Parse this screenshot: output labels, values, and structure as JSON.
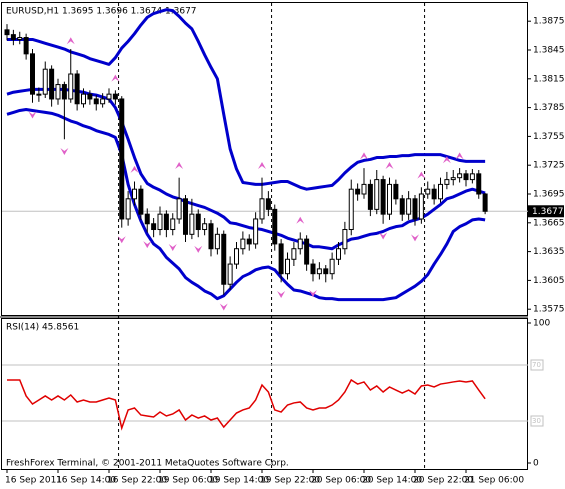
{
  "chart_data": [
    {
      "type": "candlestick",
      "title": "EURUSD,H1  1.3695 1.3696 1.3674 1.3677",
      "categories": [
        "16 Sep 2011",
        null,
        null,
        null,
        null,
        null,
        null,
        null,
        "16 Sep 14:00",
        null,
        null,
        null,
        null,
        null,
        null,
        null,
        "16 Sep 22:00",
        null,
        null,
        null,
        null,
        null,
        null,
        null,
        "19 Sep 06:00",
        null,
        null,
        null,
        null,
        null,
        null,
        null,
        "19 Sep 14:00",
        null,
        null,
        null,
        null,
        null,
        null,
        null,
        "19 Sep 22:00",
        null,
        null,
        null,
        null,
        null,
        null,
        null,
        "20 Sep 06:00",
        null,
        null,
        null,
        null,
        null,
        null,
        null,
        "20 Sep 14:00",
        null,
        null,
        null,
        null,
        null,
        null,
        null,
        "20 Sep 22:00",
        null,
        null,
        null,
        null,
        null,
        null,
        null,
        "21 Sep 06:00",
        null,
        null,
        null
      ],
      "ohlc": [
        [
          1.3866,
          1.3872,
          1.3855,
          1.3861
        ],
        [
          1.3861,
          1.3866,
          1.385,
          1.3856
        ],
        [
          1.3856,
          1.3864,
          1.3851,
          1.3858
        ],
        [
          1.3858,
          1.3862,
          1.3835,
          1.3841
        ],
        [
          1.3841,
          1.3846,
          1.379,
          1.3799
        ],
        [
          1.3799,
          1.3806,
          1.3791,
          1.3799
        ],
        [
          1.3799,
          1.3833,
          1.3795,
          1.3825
        ],
        [
          1.3825,
          1.3829,
          1.3786,
          1.3794
        ],
        [
          1.3794,
          1.3815,
          1.3788,
          1.3809
        ],
        [
          1.3809,
          1.3812,
          1.3752,
          1.3794
        ],
        [
          1.3794,
          1.3846,
          1.379,
          1.382
        ],
        [
          1.382,
          1.3824,
          1.3782,
          1.3789
        ],
        [
          1.3789,
          1.3805,
          1.3785,
          1.3799
        ],
        [
          1.3799,
          1.3803,
          1.3788,
          1.3794
        ],
        [
          1.3794,
          1.3798,
          1.3782,
          1.3789
        ],
        [
          1.3789,
          1.38,
          1.3785,
          1.3794
        ],
        [
          1.3794,
          1.3805,
          1.379,
          1.3799
        ],
        [
          1.3799,
          1.3803,
          1.3788,
          1.3794
        ],
        [
          1.3794,
          1.3797,
          1.366,
          1.3669
        ],
        [
          1.3669,
          1.3698,
          1.3662,
          1.369
        ],
        [
          1.369,
          1.3708,
          1.3683,
          1.37
        ],
        [
          1.37,
          1.3704,
          1.3668,
          1.3674
        ],
        [
          1.3674,
          1.368,
          1.3655,
          1.3664
        ],
        [
          1.3664,
          1.367,
          1.365,
          1.3658
        ],
        [
          1.3658,
          1.3682,
          1.3652,
          1.3674
        ],
        [
          1.3674,
          1.3678,
          1.365,
          1.3658
        ],
        [
          1.3658,
          1.3675,
          1.3652,
          1.3669
        ],
        [
          1.3669,
          1.3712,
          1.3664,
          1.369
        ],
        [
          1.369,
          1.3694,
          1.3645,
          1.3653
        ],
        [
          1.3653,
          1.369,
          1.3648,
          1.3674
        ],
        [
          1.3674,
          1.3679,
          1.365,
          1.3658
        ],
        [
          1.3658,
          1.367,
          1.3652,
          1.3664
        ],
        [
          1.3664,
          1.3668,
          1.363,
          1.3638
        ],
        [
          1.3638,
          1.366,
          1.3632,
          1.3653
        ],
        [
          1.3653,
          1.3657,
          1.359,
          1.3601
        ],
        [
          1.3601,
          1.363,
          1.3595,
          1.3622
        ],
        [
          1.3622,
          1.3645,
          1.3617,
          1.3638
        ],
        [
          1.3638,
          1.3656,
          1.3632,
          1.3648
        ],
        [
          1.3648,
          1.3653,
          1.3636,
          1.3643
        ],
        [
          1.3643,
          1.3676,
          1.3638,
          1.3669
        ],
        [
          1.3669,
          1.3712,
          1.3664,
          1.369
        ],
        [
          1.369,
          1.3698,
          1.3672,
          1.3679
        ],
        [
          1.3679,
          1.3684,
          1.3636,
          1.3643
        ],
        [
          1.3643,
          1.3648,
          1.3603,
          1.3612
        ],
        [
          1.3612,
          1.3634,
          1.3606,
          1.3627
        ],
        [
          1.3627,
          1.3645,
          1.362,
          1.3638
        ],
        [
          1.3638,
          1.3655,
          1.3632,
          1.3648
        ],
        [
          1.3648,
          1.3652,
          1.3615,
          1.3622
        ],
        [
          1.3622,
          1.3627,
          1.3604,
          1.3612
        ],
        [
          1.3612,
          1.3624,
          1.3606,
          1.3617
        ],
        [
          1.3617,
          1.3621,
          1.3603,
          1.3612
        ],
        [
          1.3612,
          1.3634,
          1.3606,
          1.3627
        ],
        [
          1.3627,
          1.3645,
          1.3621,
          1.3638
        ],
        [
          1.3638,
          1.3666,
          1.3632,
          1.3658
        ],
        [
          1.3658,
          1.371,
          1.3652,
          1.37
        ],
        [
          1.37,
          1.3706,
          1.3688,
          1.3695
        ],
        [
          1.3695,
          1.3722,
          1.369,
          1.3705
        ],
        [
          1.3705,
          1.371,
          1.3672,
          1.3679
        ],
        [
          1.3679,
          1.372,
          1.3674,
          1.371
        ],
        [
          1.371,
          1.3714,
          1.3664,
          1.3674
        ],
        [
          1.3674,
          1.3712,
          1.3668,
          1.3705
        ],
        [
          1.3705,
          1.371,
          1.3684,
          1.369
        ],
        [
          1.369,
          1.3694,
          1.3667,
          1.3674
        ],
        [
          1.3674,
          1.3698,
          1.3668,
          1.369
        ],
        [
          1.369,
          1.3694,
          1.3662,
          1.3669
        ],
        [
          1.3669,
          1.3702,
          1.3664,
          1.3695
        ],
        [
          1.3695,
          1.3708,
          1.369,
          1.37
        ],
        [
          1.37,
          1.3705,
          1.3684,
          1.369
        ],
        [
          1.369,
          1.3712,
          1.3686,
          1.3705
        ],
        [
          1.3705,
          1.3718,
          1.37,
          1.371
        ],
        [
          1.371,
          1.372,
          1.3704,
          1.3712
        ],
        [
          1.3712,
          1.3722,
          1.3707,
          1.3716
        ],
        [
          1.3716,
          1.372,
          1.3703,
          1.371
        ],
        [
          1.371,
          1.3721,
          1.3706,
          1.3716
        ],
        [
          1.3716,
          1.372,
          1.369,
          1.3695
        ],
        [
          1.3695,
          1.3696,
          1.3674,
          1.3677
        ]
      ],
      "bands": {
        "color": "#0000cc",
        "upper": [
          1.3856,
          1.3856,
          1.3856,
          1.3856,
          1.3856,
          1.3854,
          1.3852,
          1.385,
          1.3848,
          1.3846,
          1.3843,
          1.3841,
          1.3839,
          1.3836,
          1.3834,
          1.3832,
          1.383,
          1.3837,
          1.3847,
          1.3854,
          1.3862,
          1.3871,
          1.3879,
          1.3883,
          1.3885,
          1.3887,
          1.3886,
          1.388,
          1.3873,
          1.3867,
          1.3854,
          1.384,
          1.3827,
          1.3815,
          1.3778,
          1.3742,
          1.3721,
          1.3707,
          1.3706,
          1.3705,
          1.3705,
          1.3706,
          1.3707,
          1.3708,
          1.3708,
          1.3705,
          1.3702,
          1.37,
          1.3701,
          1.3702,
          1.3703,
          1.3704,
          1.371,
          1.3717,
          1.3723,
          1.3728,
          1.373,
          1.3731,
          1.3733,
          1.3733,
          1.3734,
          1.3734,
          1.3735,
          1.3735,
          1.3736,
          1.3736,
          1.3736,
          1.3736,
          1.3736,
          1.3734,
          1.3732,
          1.373,
          1.3729,
          1.3729,
          1.3729,
          1.3729
        ],
        "middle": [
          1.3799,
          1.3801,
          1.3802,
          1.3803,
          1.3804,
          1.3804,
          1.3804,
          1.3804,
          1.3804,
          1.3804,
          1.3803,
          1.3802,
          1.3801,
          1.3799,
          1.3798,
          1.3796,
          1.3794,
          1.3785,
          1.377,
          1.3752,
          1.3733,
          1.3716,
          1.3706,
          1.3702,
          1.3699,
          1.3695,
          1.3692,
          1.369,
          1.3687,
          1.3685,
          1.3683,
          1.3681,
          1.3678,
          1.3675,
          1.3671,
          1.3665,
          1.3664,
          1.3662,
          1.366,
          1.3659,
          1.3658,
          1.3656,
          1.3654,
          1.3652,
          1.3649,
          1.3647,
          1.3645,
          1.3643,
          1.364,
          1.364,
          1.3639,
          1.3638,
          1.3642,
          1.3645,
          1.3648,
          1.3649,
          1.3651,
          1.3653,
          1.3654,
          1.3656,
          1.3659,
          1.3661,
          1.3662,
          1.3666,
          1.3668,
          1.367,
          1.3674,
          1.3679,
          1.3684,
          1.369,
          1.3692,
          1.3695,
          1.3698,
          1.37,
          1.3698,
          1.3696
        ],
        "lower": [
          1.3778,
          1.378,
          1.3782,
          1.3783,
          1.3782,
          1.3781,
          1.378,
          1.3779,
          1.3777,
          1.3774,
          1.3771,
          1.3769,
          1.3766,
          1.3764,
          1.3761,
          1.3759,
          1.3757,
          1.3754,
          1.3736,
          1.3705,
          1.3684,
          1.3667,
          1.3653,
          1.3643,
          1.3638,
          1.3629,
          1.3623,
          1.3617,
          1.3608,
          1.3603,
          1.3599,
          1.3594,
          1.3591,
          1.3586,
          1.3589,
          1.3596,
          1.3603,
          1.3609,
          1.3612,
          1.3616,
          1.3618,
          1.3619,
          1.3616,
          1.3608,
          1.3601,
          1.3595,
          1.3594,
          1.3592,
          1.359,
          1.3587,
          1.3586,
          1.3586,
          1.3585,
          1.3585,
          1.3585,
          1.3585,
          1.3585,
          1.3585,
          1.3585,
          1.3585,
          1.3586,
          1.3587,
          1.3591,
          1.3595,
          1.3599,
          1.3604,
          1.3611,
          1.3622,
          1.3632,
          1.3643,
          1.3656,
          1.3661,
          1.3664,
          1.3668,
          1.3669,
          1.3668
        ]
      },
      "fractals_up": [
        null,
        null,
        null,
        null,
        null,
        null,
        null,
        null,
        null,
        null,
        1.385,
        null,
        null,
        null,
        null,
        null,
        null,
        1.3811,
        null,
        null,
        1.3716,
        null,
        null,
        null,
        null,
        null,
        null,
        1.372,
        null,
        null,
        null,
        null,
        null,
        null,
        null,
        null,
        null,
        null,
        null,
        null,
        1.372,
        null,
        null,
        null,
        null,
        null,
        1.3663,
        null,
        null,
        null,
        null,
        null,
        null,
        null,
        null,
        null,
        1.373,
        null,
        null,
        null,
        1.372,
        null,
        null,
        null,
        null,
        1.371,
        null,
        null,
        null,
        1.3726,
        null,
        1.373,
        null,
        null,
        null,
        null
      ],
      "fractals_down": [
        null,
        null,
        null,
        null,
        1.3782,
        null,
        null,
        null,
        null,
        1.3744,
        null,
        null,
        null,
        null,
        null,
        null,
        null,
        null,
        1.3652,
        null,
        null,
        null,
        1.3647,
        null,
        null,
        null,
        1.3644,
        null,
        null,
        null,
        1.3642,
        null,
        null,
        null,
        1.3582,
        null,
        null,
        null,
        null,
        null,
        null,
        null,
        null,
        1.3595,
        null,
        null,
        null,
        null,
        1.3596,
        null,
        null,
        null,
        null,
        null,
        null,
        null,
        null,
        null,
        null,
        1.3656,
        null,
        null,
        null,
        null,
        1.3654,
        null,
        null,
        null,
        null,
        null,
        null,
        null,
        null,
        null,
        null,
        null
      ],
      "fractal_color": "#e060c8",
      "current_price": 1.3677,
      "ylim": [
        1.357,
        1.3895
      ],
      "yticks": [
        1.3875,
        1.3845,
        1.3815,
        1.3785,
        1.3755,
        1.3725,
        1.3695,
        1.3665,
        1.3635,
        1.3605,
        1.3575
      ]
    },
    {
      "type": "line",
      "title": "RSI(14) 45.8561",
      "color": "#e00000",
      "values": [
        59.3,
        59.3,
        59.3,
        47.9,
        42.1,
        45,
        47.9,
        45,
        47.9,
        45,
        48.6,
        43.6,
        45,
        43.6,
        43.6,
        45,
        46.4,
        45,
        25,
        37.9,
        39.3,
        34.3,
        33.6,
        32.9,
        36.4,
        33.6,
        35,
        37.9,
        30.7,
        34.3,
        32.1,
        33.6,
        30.7,
        32.1,
        25.7,
        30.7,
        35.7,
        37.9,
        39.3,
        45,
        55.7,
        50.7,
        37.9,
        36.4,
        41.4,
        42.9,
        43.6,
        39.3,
        37.9,
        39.3,
        39.3,
        41.4,
        45,
        50.7,
        59.3,
        56.4,
        57.9,
        52.1,
        55,
        50.7,
        54.3,
        52.1,
        50,
        52.1,
        49.3,
        55,
        55.7,
        54.3,
        56.4,
        57.1,
        57.9,
        58.6,
        57.9,
        58.6,
        52.1,
        45.8561
      ],
      "ylim": [
        0,
        100
      ],
      "yticks": [
        100,
        0
      ],
      "levels": [
        70,
        30
      ],
      "footer": "FreshForex Terminal, © 2001-2011 MetaQuotes Software Corp."
    }
  ]
}
